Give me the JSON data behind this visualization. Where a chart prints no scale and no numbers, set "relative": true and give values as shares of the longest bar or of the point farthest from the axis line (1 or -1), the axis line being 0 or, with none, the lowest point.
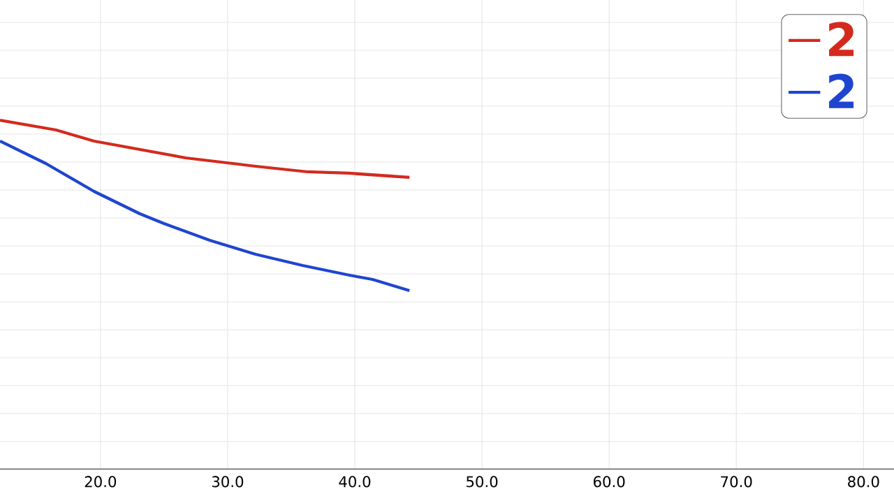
{
  "chart_data": {
    "type": "line",
    "relative": true,
    "grid": true,
    "legend": "top right",
    "xlim": [
      12.1,
      82.4
    ],
    "xticks": [
      {
        "value": 20,
        "label": "20.0"
      },
      {
        "value": 30,
        "label": "30.0"
      },
      {
        "value": 40,
        "label": "40.0"
      },
      {
        "value": 50,
        "label": "50.0"
      },
      {
        "value": 60,
        "label": "60.0"
      },
      {
        "value": 70,
        "label": "70.0"
      },
      {
        "value": 80,
        "label": "80.0"
      }
    ],
    "series": [
      {
        "name": "2",
        "color": "#d42a1e",
        "x": [
          12.1,
          16.5,
          19.5,
          23.1,
          26.7,
          30.4,
          32.2,
          36.3,
          39.6,
          44.3
        ],
        "values": [
          1.0,
          0.972,
          0.94,
          0.916,
          0.892,
          0.876,
          0.868,
          0.852,
          0.848,
          0.836
        ]
      },
      {
        "name": "2",
        "color": "#1f45d0",
        "x": [
          12.1,
          15.7,
          19.5,
          23.1,
          25.0,
          28.6,
          32.2,
          35.9,
          39.6,
          41.4,
          44.3
        ],
        "values": [
          0.94,
          0.876,
          0.796,
          0.732,
          0.704,
          0.656,
          0.616,
          0.584,
          0.556,
          0.544,
          0.512
        ]
      }
    ]
  }
}
